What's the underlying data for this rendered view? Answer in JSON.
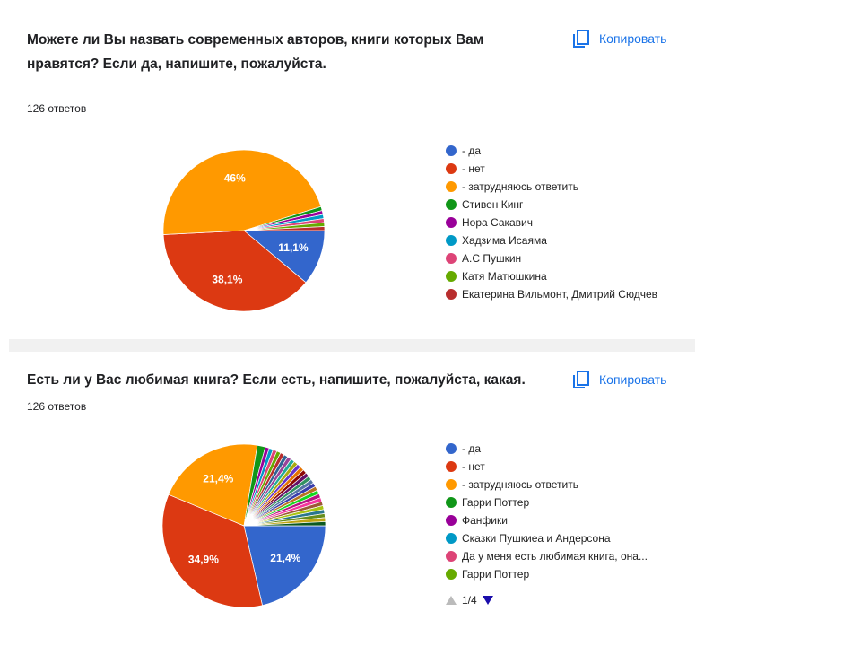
{
  "copy_label": "Копировать",
  "chart_data": [
    {
      "type": "pie",
      "title": "Можете ли Вы назвать современных авторов, книги которых Вам нравятся? Если да, напишите, пожалуйста.",
      "subtitle": "126 ответов",
      "categories": [
        "- да",
        "- нет",
        "- затрудняюсь ответить",
        "Стивен Кинг",
        "Нора Сакавич",
        "Хадзима Исаяма",
        "А.С Пушкин",
        "Катя Матюшкина",
        "Екатерина Вильмонт, Дмитрий Сюдчев"
      ],
      "values": [
        11.1,
        38.1,
        46,
        0.8,
        0.8,
        0.8,
        0.8,
        0.8,
        0.8
      ],
      "value_labels": [
        "11,1%",
        "38,1%",
        "46%",
        null,
        null,
        null,
        null,
        null,
        null
      ],
      "colors": [
        "#3366cc",
        "#dc3912",
        "#ff9900",
        "#109618",
        "#990099",
        "#0099c6",
        "#dd4477",
        "#66aa00",
        "#b82e2e"
      ]
    },
    {
      "type": "pie",
      "title": "Есть ли у Вас любимая книга? Если есть, напишите, пожалуйста, какая.",
      "subtitle": "126 ответов",
      "categories": [
        "- да",
        "- нет",
        "- затрудняюсь ответить",
        "Гарри Поттер",
        "Фанфики",
        "Сказки Пушкиеа и Андерсона",
        "Да у меня есть любимая книга, она...",
        "Гарри Поттер",
        null,
        null,
        null,
        null,
        null,
        null,
        null,
        null,
        null,
        null,
        null,
        null,
        null,
        null,
        null,
        null,
        null,
        null,
        null,
        null,
        null,
        null
      ],
      "values": [
        21.4,
        34.9,
        21.4,
        1.6,
        0.8,
        0.8,
        0.8,
        0.8,
        0.8,
        0.8,
        0.8,
        0.8,
        0.8,
        0.8,
        0.8,
        0.8,
        0.8,
        0.8,
        0.8,
        0.8,
        0.8,
        0.8,
        0.8,
        0.8,
        0.8,
        0.8,
        0.8,
        0.8,
        0.8,
        0.8
      ],
      "value_labels": [
        "21,4%",
        "34,9%",
        "21,4%",
        null,
        null,
        null,
        null,
        null,
        null,
        null,
        null,
        null,
        null,
        null,
        null,
        null,
        null,
        null,
        null,
        null,
        null,
        null,
        null,
        null,
        null,
        null,
        null,
        null,
        null,
        null
      ],
      "colors": [
        "#3366cc",
        "#dc3912",
        "#ff9900",
        "#109618",
        "#990099",
        "#0099c6",
        "#dd4477",
        "#66aa00",
        "#b82e2e",
        "#316395",
        "#994499",
        "#22aa99",
        "#aaaa11",
        "#6633cc",
        "#e67300",
        "#8b0707",
        "#651067",
        "#329262",
        "#5574a6",
        "#3b3eac",
        "#b77322",
        "#16d620",
        "#b91383",
        "#f4359e",
        "#9c5935",
        "#a9c413",
        "#2a778d",
        "#668d1c",
        "#bea413",
        "#0c5922"
      ],
      "legend_page": "1/4"
    }
  ]
}
